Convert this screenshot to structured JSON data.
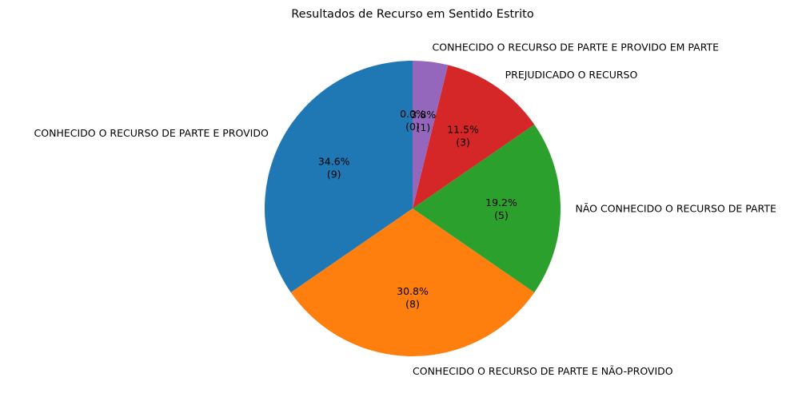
{
  "chart_data": {
    "type": "pie",
    "title": "Resultados de Recurso em Sentido Estrito",
    "total": 26,
    "start_angle_deg": 90,
    "direction": "counterclockwise",
    "slices": [
      {
        "label": "CONHECIDO O RECURSO DE PARTE E PROVIDO",
        "value": 9,
        "pct_label": "34.6%",
        "count_label": "(9)",
        "color": "#1f77b4"
      },
      {
        "label": "CONHECIDO O RECURSO DE PARTE E NÃO-PROVIDO",
        "value": 8,
        "pct_label": "30.8%",
        "count_label": "(8)",
        "color": "#ff7f0e"
      },
      {
        "label": "NÃO CONHECIDO O RECURSO DE PARTE",
        "value": 5,
        "pct_label": "19.2%",
        "count_label": "(5)",
        "color": "#2ca02c"
      },
      {
        "label": "PREJUDICADO O RECURSO",
        "value": 3,
        "pct_label": "11.5%",
        "count_label": "(3)",
        "color": "#d62728"
      },
      {
        "label": "CONHECIDO O RECURSO DE PARTE E PROVIDO EM PARTE",
        "value": 1,
        "pct_label": "3.8%",
        "count_label": "(1)",
        "color": "#9467bd"
      },
      {
        "label": "",
        "value": 0,
        "pct_label": "0.0%",
        "count_label": "(0)",
        "color": "#8c564b"
      }
    ]
  }
}
